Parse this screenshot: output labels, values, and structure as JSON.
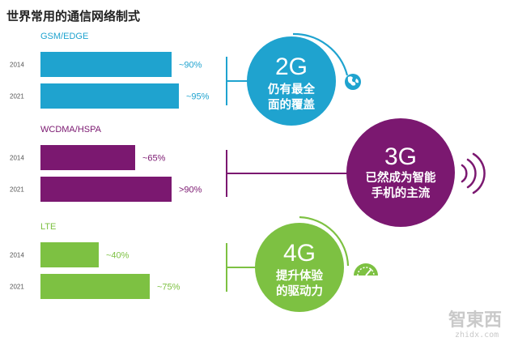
{
  "title": "世界常用的通信网络制式",
  "chart_data": {
    "type": "bar",
    "orientation": "horizontal",
    "categories": [
      "2014",
      "2021"
    ],
    "series": [
      {
        "name": "GSM/EDGE",
        "color": "#1fa3cf",
        "values": [
          90,
          95
        ],
        "labels": [
          "~90%",
          "~95%"
        ]
      },
      {
        "name": "WCDMA/HSPA",
        "color": "#7b1870",
        "values": [
          65,
          90
        ],
        "labels": [
          "~65%",
          ">90%"
        ]
      },
      {
        "name": "LTE",
        "color": "#7dc142",
        "values": [
          40,
          75
        ],
        "labels": [
          "~40%",
          "~75%"
        ]
      }
    ],
    "xlim": [
      0,
      100
    ],
    "grid": false
  },
  "callouts": [
    {
      "generation": "2G",
      "line1": "仍有最全",
      "line2": "面的覆盖",
      "color": "#1fa3cf",
      "icon": "globe-icon"
    },
    {
      "generation": "3G",
      "line1": "已然成为智能",
      "line2": "手机的主流",
      "color": "#7b1870",
      "icon": "signal-waves-icon"
    },
    {
      "generation": "4G",
      "line1": "提升体验",
      "line2": "的驱动力",
      "color": "#7dc142",
      "icon": "speedometer-icon"
    }
  ],
  "watermark": {
    "text": "智東西",
    "sub": "zhidx.com"
  }
}
